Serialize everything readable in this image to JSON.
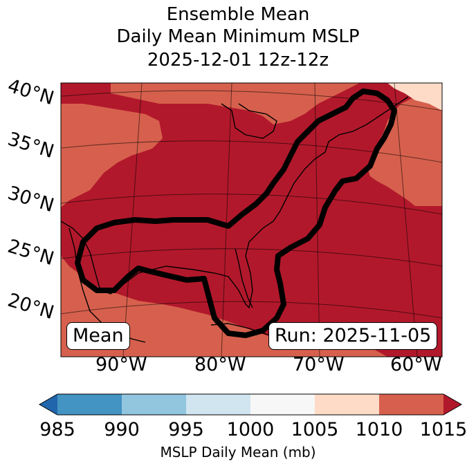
{
  "title": {
    "line1": "Ensemble Mean",
    "line2": "Daily Mean Minimum MSLP",
    "line3": "2025-12-01 12z-12z"
  },
  "map": {
    "lat_labels": [
      "40°N",
      "35°N",
      "30°N",
      "25°N",
      "20°N"
    ],
    "lon_labels": [
      "90°W",
      "80°W",
      "70°W",
      "60°W"
    ],
    "mean_box": "Mean",
    "run_box": "Run: 2025-11-05",
    "fill_colors": {
      "dark": "#b2182b",
      "medium": "#d6604d",
      "light": "#fddbc7"
    },
    "contour_color": "#000000"
  },
  "colorbar": {
    "ticks": [
      "985",
      "990",
      "995",
      "1000",
      "1005",
      "1010",
      "1015"
    ],
    "label": "MSLP Daily Mean (mb)",
    "colors": [
      "#2166ac",
      "#4393c3",
      "#92c5de",
      "#d1e5f0",
      "#f7f7f7",
      "#fddbc7",
      "#d6604d",
      "#b2182b"
    ]
  }
}
